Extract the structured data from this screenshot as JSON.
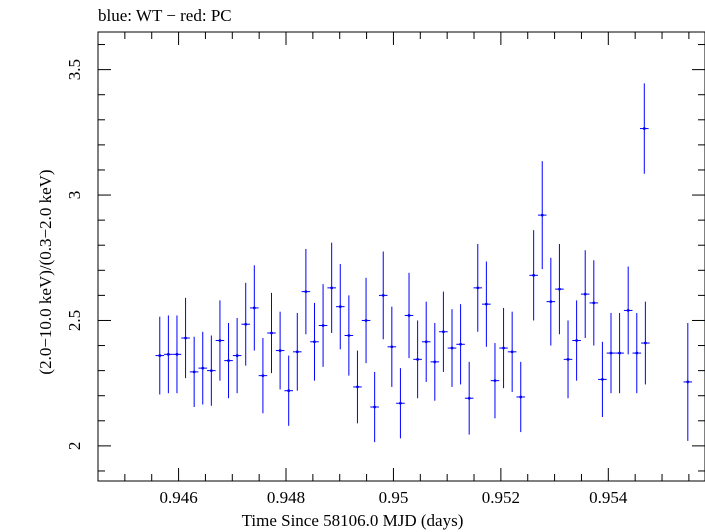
{
  "chart_data": {
    "type": "scatter",
    "title": "blue: WT − red: PC",
    "xlabel": "Time Since 58106.0 MJD (days)",
    "ylabel": "(2.0−10.0 keV)/(0.3−2.0 keV)",
    "xlim": [
      0.9445,
      0.9558
    ],
    "ylim": [
      1.86,
      3.65
    ],
    "x_ticks": [
      0.946,
      0.948,
      0.95,
      0.952,
      0.954
    ],
    "x_tick_labels": [
      "0.946",
      "0.948",
      "0.95",
      "0.952",
      "0.954"
    ],
    "y_ticks": [
      2,
      2.5,
      3,
      3.5
    ],
    "y_tick_labels": [
      "2",
      "2.5",
      "3",
      "3.5"
    ],
    "grid": false,
    "x_error": 8e-05,
    "series": [
      {
        "color": "#0000ff",
        "x": [
          0.94565,
          0.94581,
          0.94597,
          0.94613,
          0.94629,
          0.94645,
          0.94661,
          0.94677,
          0.94693,
          0.94709,
          0.94725,
          0.94741,
          0.94757,
          0.94773,
          0.94789,
          0.94805,
          0.94821,
          0.94837,
          0.94853,
          0.94869,
          0.94885,
          0.94901,
          0.94917,
          0.94933,
          0.94949,
          0.94965,
          0.94981,
          0.94997,
          0.95013,
          0.95029,
          0.95045,
          0.95061,
          0.95077,
          0.95093,
          0.95109,
          0.95125,
          0.95141,
          0.95157,
          0.95173,
          0.95189,
          0.95205,
          0.95221,
          0.95237,
          0.95261,
          0.95277,
          0.95293,
          0.95309,
          0.95325,
          0.95341,
          0.95357,
          0.95373,
          0.95389,
          0.95405,
          0.95421,
          0.95437,
          0.95453,
          0.95469,
          0.95548
        ],
        "y": [
          2.36,
          2.365,
          2.365,
          2.43,
          2.295,
          2.31,
          2.3,
          2.42,
          2.34,
          2.36,
          2.485,
          2.55,
          2.28,
          2.45,
          2.38,
          2.22,
          2.375,
          2.615,
          2.415,
          2.48,
          2.63,
          2.555,
          2.44,
          2.235,
          2.5,
          2.155,
          2.6,
          2.395,
          2.17,
          2.52,
          2.345,
          2.415,
          2.335,
          2.455,
          2.39,
          2.405,
          2.19,
          2.63,
          2.565,
          2.26,
          2.39,
          2.375,
          2.195,
          2.68,
          2.92,
          2.575,
          2.625,
          2.345,
          2.42,
          2.605,
          2.57,
          2.265,
          2.37,
          2.37,
          2.54,
          2.37,
          2.41,
          2.255
        ],
        "y_err": [
          0.155,
          0.155,
          0.155,
          0.16,
          0.14,
          0.145,
          0.14,
          0.16,
          0.15,
          0.15,
          0.165,
          0.17,
          0.15,
          0.16,
          0.155,
          0.14,
          0.155,
          0.17,
          0.155,
          0.165,
          0.18,
          0.17,
          0.16,
          0.145,
          0.17,
          0.14,
          0.175,
          0.16,
          0.14,
          0.17,
          0.155,
          0.16,
          0.155,
          0.16,
          0.155,
          0.16,
          0.145,
          0.175,
          0.17,
          0.15,
          0.16,
          0.16,
          0.14,
          0.18,
          0.215,
          0.175,
          0.18,
          0.155,
          0.16,
          0.175,
          0.17,
          0.15,
          0.16,
          0.16,
          0.175,
          0.16,
          0.165,
          0.235
        ]
      },
      {
        "color": "#ff0000",
        "x": [
          0.95467
        ],
        "y": [
          3.265
        ],
        "y_err": [
          0.18
        ]
      }
    ]
  }
}
